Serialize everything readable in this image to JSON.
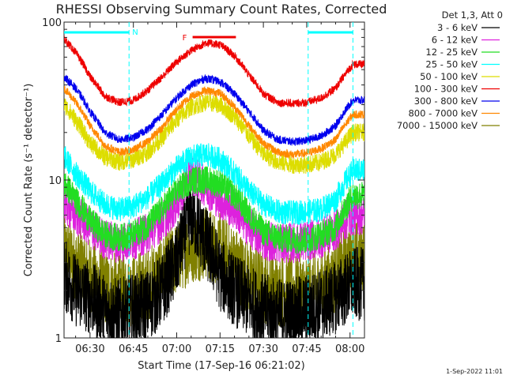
{
  "chart_data": {
    "type": "line",
    "title": "RHESSI Observing Summary Count Rates, Corrected",
    "xlabel": "Start Time (17-Sep-16 06:21:02)",
    "ylabel": "Corrected Count Rate (s⁻¹ detector⁻¹)",
    "yscale": "log",
    "ylim": [
      1,
      100
    ],
    "xlim_minutes": [
      381,
      485
    ],
    "yticks": [
      {
        "value": 1,
        "label": "1"
      },
      {
        "value": 10,
        "label": "10"
      },
      {
        "value": 100,
        "label": "100"
      }
    ],
    "xticks": [
      {
        "minute": 390,
        "label": "06:30"
      },
      {
        "minute": 405,
        "label": "06:45"
      },
      {
        "minute": 420,
        "label": "07:00"
      },
      {
        "minute": 435,
        "label": "07:15"
      },
      {
        "minute": 450,
        "label": "07:30"
      },
      {
        "minute": 465,
        "label": "07:45"
      },
      {
        "minute": 480,
        "label": "08:00"
      }
    ],
    "legend_header": "Det 1,3, Att 0",
    "legend_position": "right",
    "x": [
      381,
      385,
      390,
      395,
      400,
      405,
      410,
      415,
      420,
      425,
      430,
      435,
      440,
      445,
      450,
      455,
      460,
      465,
      470,
      475,
      478,
      481
    ],
    "series": [
      {
        "name": "3 - 6 keV",
        "color": "#000000",
        "noise": 0.9,
        "values": [
          2.5,
          2.0,
          1.8,
          1.5,
          1.4,
          1.5,
          1.6,
          2.0,
          3.0,
          6.0,
          4.0,
          2.5,
          2.0,
          1.7,
          1.5,
          1.4,
          1.4,
          1.5,
          1.6,
          1.8,
          2.0,
          2.2
        ]
      },
      {
        "name": "6 - 12 keV",
        "color": "#dd22dd",
        "noise": 0.5,
        "values": [
          7.0,
          6.0,
          5.0,
          4.2,
          4.0,
          4.2,
          4.6,
          5.5,
          7.0,
          11.0,
          9.0,
          7.5,
          6.5,
          5.0,
          4.2,
          4.0,
          4.0,
          4.1,
          4.3,
          4.8,
          5.5,
          6.0
        ]
      },
      {
        "name": "12 - 25 keV",
        "color": "#22dd22",
        "noise": 0.35,
        "values": [
          9.5,
          7.5,
          5.5,
          4.5,
          4.3,
          4.5,
          5.2,
          6.5,
          8.5,
          10.0,
          10.0,
          9.5,
          8.0,
          6.0,
          4.7,
          4.3,
          4.2,
          4.2,
          4.5,
          5.0,
          6.5,
          8.0
        ]
      },
      {
        "name": "25 - 50 keV",
        "color": "#00ffff",
        "noise": 0.3,
        "values": [
          14.0,
          11.0,
          8.5,
          7.0,
          6.5,
          6.8,
          7.8,
          9.5,
          12.0,
          14.0,
          14.5,
          13.5,
          11.0,
          8.5,
          7.0,
          6.3,
          6.2,
          6.3,
          6.5,
          7.5,
          9.5,
          11.5
        ]
      },
      {
        "name": "50 - 100 keV",
        "color": "#dddd00",
        "noise": 0.22,
        "values": [
          30.0,
          24.0,
          17.0,
          14.0,
          13.0,
          13.5,
          15.0,
          18.5,
          24.0,
          29.0,
          31.0,
          30.0,
          25.0,
          19.0,
          14.5,
          13.0,
          12.5,
          12.5,
          13.0,
          14.5,
          17.0,
          20.0
        ]
      },
      {
        "name": "100 - 300 keV",
        "color": "#ee0000",
        "noise": 0.1,
        "values": [
          78.0,
          64.0,
          45.0,
          34.0,
          31.0,
          32.0,
          37.0,
          45.0,
          56.0,
          66.0,
          74.0,
          72.0,
          61.0,
          46.0,
          35.0,
          31.0,
          30.5,
          31.0,
          33.0,
          38.0,
          46.0,
          54.0
        ]
      },
      {
        "name": "300 - 800 keV",
        "color": "#0000ee",
        "noise": 0.1,
        "values": [
          45.0,
          38.0,
          27.0,
          20.0,
          18.0,
          18.5,
          21.0,
          26.0,
          33.0,
          40.0,
          44.0,
          42.0,
          35.0,
          27.0,
          20.5,
          18.0,
          17.5,
          17.8,
          19.0,
          22.0,
          27.0,
          32.0
        ]
      },
      {
        "name": "800 - 7000 keV",
        "color": "#ff8800",
        "noise": 0.1,
        "values": [
          38.0,
          31.0,
          22.0,
          16.5,
          15.0,
          15.5,
          17.5,
          21.5,
          28.0,
          34.0,
          37.0,
          35.5,
          29.0,
          22.0,
          17.0,
          15.0,
          14.5,
          14.8,
          15.8,
          18.0,
          22.0,
          26.0
        ]
      },
      {
        "name": "7000 - 15000 keV",
        "color": "#808000",
        "noise": 0.9,
        "values": [
          3.5,
          3.0,
          2.5,
          2.1,
          2.0,
          2.0,
          2.2,
          2.6,
          3.2,
          3.8,
          4.0,
          3.6,
          3.0,
          2.4,
          2.1,
          2.0,
          2.0,
          2.0,
          2.1,
          2.4,
          2.9,
          3.3
        ]
      }
    ],
    "markers": [
      {
        "label": "N",
        "kind": "night",
        "color": "#00ffff",
        "start": 381,
        "end": 403.5
      },
      {
        "label": "",
        "kind": "night",
        "color": "#00ffff",
        "start": 465.5,
        "end": 481
      },
      {
        "label": "F",
        "kind": "flare",
        "color": "#ee0000",
        "start": 425.5,
        "end": 440.5
      }
    ]
  },
  "timestamp": "1-Sep-2022 11:01"
}
